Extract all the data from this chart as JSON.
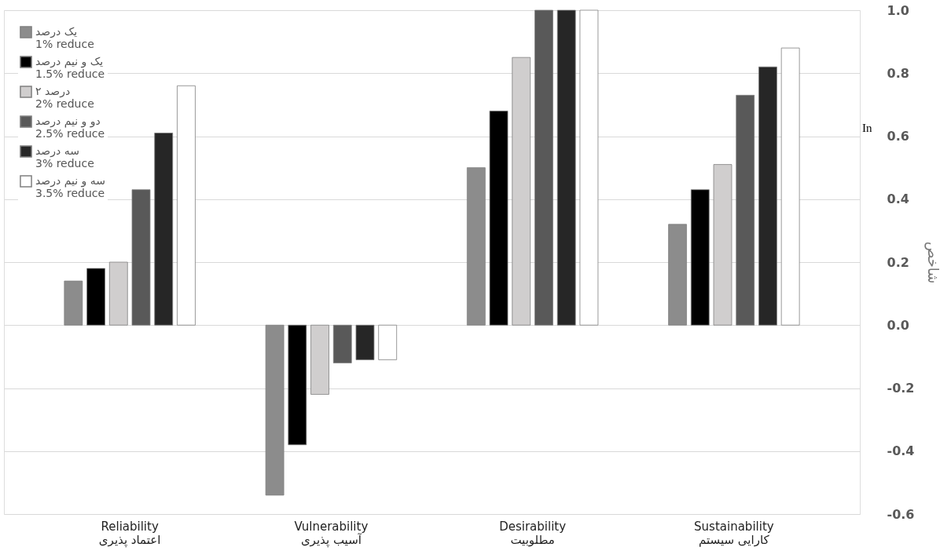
{
  "chart_data": {
    "type": "bar",
    "categories": [
      "Reliability\nاعتماد پذیری",
      "Vulnerability\nآسیب پذیری",
      "Desirability\nمطلوبیت",
      "Sustainability\nکارایی سیستم"
    ],
    "series": [
      {
        "name": "یک درصد\n1% reduce",
        "color": "#8c8c8c",
        "values": [
          0.14,
          -0.54,
          0.5,
          0.32
        ]
      },
      {
        "name": "یک و نیم درصد\n1.5% reduce",
        "color": "#000000",
        "values": [
          0.18,
          -0.38,
          0.68,
          0.43
        ]
      },
      {
        "name": "۲ درصد\n2% reduce",
        "color": "#d0cece",
        "values": [
          0.2,
          -0.22,
          0.85,
          0.51
        ]
      },
      {
        "name": "دو و نیم درصد\n2.5% reduce",
        "color": "#595959",
        "values": [
          0.43,
          -0.12,
          1.0,
          0.73
        ]
      },
      {
        "name": "سه درصد\n3% reduce",
        "color": "#262626",
        "values": [
          0.61,
          -0.11,
          1.0,
          0.82
        ]
      },
      {
        "name": "سه و نیم درصد\n3.5% reduce",
        "color": "#ffffff",
        "values": [
          0.76,
          -0.11,
          1.0,
          0.88
        ]
      }
    ],
    "ylabel": "شاخص",
    "annotations": [
      "In"
    ],
    "ylim": [
      -0.6,
      1.0
    ],
    "yticks": [
      {
        "value": -0.6,
        "label": "-0.6"
      },
      {
        "value": -0.4,
        "label": "-0.4"
      },
      {
        "value": -0.2,
        "label": "-0.2"
      },
      {
        "value": 0,
        "label": "0.0"
      },
      {
        "value": 0.2,
        "label": "0.2"
      },
      {
        "value": 0.4,
        "label": "0.4"
      },
      {
        "value": 0.6,
        "label": "0.6"
      },
      {
        "value": 0.8,
        "label": "0.8"
      },
      {
        "value": 1,
        "label": "1.0"
      }
    ],
    "grid": "y",
    "legend": "top left"
  }
}
